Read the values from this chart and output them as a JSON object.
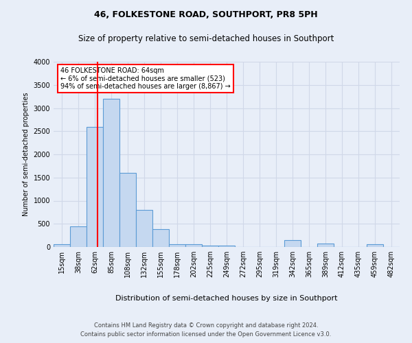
{
  "title1": "46, FOLKESTONE ROAD, SOUTHPORT, PR8 5PH",
  "title2": "Size of property relative to semi-detached houses in Southport",
  "xlabel": "Distribution of semi-detached houses by size in Southport",
  "ylabel": "Number of semi-detached properties",
  "footer1": "Contains HM Land Registry data © Crown copyright and database right 2024.",
  "footer2": "Contains public sector information licensed under the Open Government Licence v3.0.",
  "annotation_line1": "46 FOLKESTONE ROAD: 64sqm",
  "annotation_line2": "← 6% of semi-detached houses are smaller (523)",
  "annotation_line3": "94% of semi-detached houses are larger (8,867) →",
  "bin_labels": [
    "15sqm",
    "38sqm",
    "62sqm",
    "85sqm",
    "108sqm",
    "132sqm",
    "155sqm",
    "178sqm",
    "202sqm",
    "225sqm",
    "249sqm",
    "272sqm",
    "295sqm",
    "319sqm",
    "342sqm",
    "365sqm",
    "389sqm",
    "412sqm",
    "435sqm",
    "459sqm",
    "482sqm"
  ],
  "bin_values": [
    55,
    450,
    2600,
    3200,
    1600,
    800,
    390,
    55,
    55,
    30,
    25,
    0,
    0,
    0,
    155,
    0,
    80,
    0,
    0,
    65,
    0
  ],
  "bar_color": "#c5d8f0",
  "bar_edge_color": "#5b9bd5",
  "red_line_x": 2.15,
  "ylim": [
    0,
    4000
  ],
  "yticks": [
    0,
    500,
    1000,
    1500,
    2000,
    2500,
    3000,
    3500,
    4000
  ],
  "background_color": "#e8eef8",
  "grid_color": "#d0d8e8",
  "annotation_box_color": "white",
  "annotation_box_edge": "red",
  "title1_fontsize": 9,
  "title2_fontsize": 8.5,
  "ylabel_fontsize": 7,
  "xlabel_fontsize": 8,
  "tick_fontsize": 7,
  "footer_fontsize": 6,
  "annotation_fontsize": 7
}
